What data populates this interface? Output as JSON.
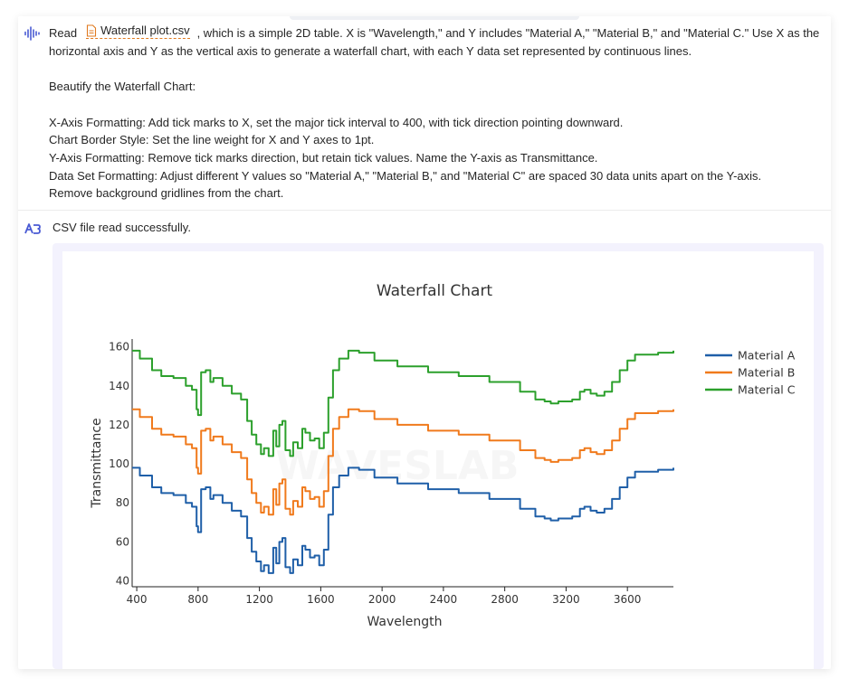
{
  "user_message": {
    "read_word": "Read",
    "file_name": "Waterfall plot.csv",
    "para1_rest": ", which is a simple 2D table. X is \"Wavelength,\" and Y includes \"Material A,\" \"Material B,\" and \"Material C.\" Use X as the horizontal axis and Y as the vertical axis to generate a waterfall chart, with each Y data set represented by continuous lines.",
    "para2": "Beautify the Waterfall Chart:",
    "line_x_axis": "X-Axis Formatting: Add tick marks to X, set the major tick interval to 400, with tick direction pointing downward.",
    "line_border": "Chart Border Style: Set the line weight for X and Y axes to 1pt.",
    "line_y_axis": "Y-Axis Formatting: Remove tick marks direction, but retain tick values. Name the Y-axis as Transmittance.",
    "line_data_set": "Data Set Formatting: Adjust different Y values so \"Material A,\" \"Material B,\" and \"Material C\" are spaced 30 data units apart on the Y-axis.",
    "line_grid": "Remove background gridlines from the chart."
  },
  "assistant_message": {
    "status_text": "CSV file read successfully."
  },
  "icons": {
    "user": "voice-wave-icon",
    "file": "document-icon",
    "assistant": "assistant-logo-icon"
  },
  "colors": {
    "accent": "#4a5bd4",
    "file_chip": "#e07a1f",
    "frame_bg": "#f3f2fd"
  },
  "chart_data": {
    "type": "line",
    "title": "Waterfall Chart",
    "xlabel": "Wavelength",
    "ylabel": "Transmittance",
    "xlim": [
      370,
      3900
    ],
    "ylim": [
      37,
      164
    ],
    "xticks": [
      400,
      800,
      1200,
      1600,
      2000,
      2400,
      2800,
      3200,
      3600
    ],
    "yticks": [
      40,
      60,
      80,
      100,
      120,
      140,
      160
    ],
    "grid": false,
    "legend_position": "top-right",
    "x": [
      370,
      420,
      500,
      560,
      640,
      720,
      760,
      790,
      800,
      820,
      850,
      880,
      900,
      960,
      1020,
      1080,
      1120,
      1150,
      1180,
      1210,
      1230,
      1260,
      1290,
      1310,
      1330,
      1350,
      1370,
      1400,
      1420,
      1450,
      1480,
      1500,
      1530,
      1560,
      1590,
      1620,
      1650,
      1680,
      1720,
      1780,
      1850,
      1950,
      2100,
      2300,
      2500,
      2700,
      2900,
      3000,
      3060,
      3100,
      3150,
      3200,
      3240,
      3290,
      3320,
      3360,
      3400,
      3450,
      3500,
      3550,
      3600,
      3650,
      3700,
      3800,
      3900
    ],
    "series": [
      {
        "name": "Material A",
        "color": "#1f5fa8",
        "values": [
          98,
          94,
          88,
          85,
          84,
          80,
          78,
          68,
          65,
          87,
          88,
          82,
          84,
          80,
          76,
          73,
          62,
          55,
          50,
          45,
          48,
          44,
          57,
          49,
          60,
          62,
          47,
          44,
          51,
          48,
          58,
          56,
          52,
          53,
          48,
          56,
          74,
          88,
          94,
          98,
          97,
          93,
          90,
          87,
          85,
          82,
          77,
          73,
          72,
          71,
          72,
          72,
          73,
          77,
          78,
          76,
          75,
          77,
          82,
          88,
          93,
          96,
          96,
          97,
          98
        ]
      },
      {
        "name": "Material B",
        "color": "#f07a1c",
        "values": [
          128,
          124,
          118,
          115,
          114,
          110,
          108,
          98,
          95,
          117,
          118,
          112,
          114,
          110,
          106,
          103,
          92,
          85,
          80,
          75,
          78,
          74,
          87,
          79,
          90,
          92,
          77,
          74,
          81,
          78,
          88,
          86,
          82,
          83,
          78,
          86,
          104,
          118,
          124,
          128,
          127,
          123,
          120,
          117,
          115,
          112,
          107,
          103,
          102,
          101,
          102,
          102,
          103,
          107,
          108,
          106,
          105,
          107,
          112,
          118,
          123,
          126,
          126,
          127,
          128
        ]
      },
      {
        "name": "Material C",
        "color": "#2ca02c",
        "values": [
          158,
          154,
          148,
          145,
          144,
          140,
          138,
          128,
          125,
          147,
          148,
          142,
          144,
          140,
          136,
          133,
          122,
          115,
          110,
          105,
          108,
          104,
          117,
          109,
          120,
          122,
          107,
          104,
          111,
          108,
          118,
          116,
          112,
          113,
          108,
          116,
          134,
          148,
          154,
          158,
          157,
          153,
          150,
          147,
          145,
          142,
          137,
          133,
          132,
          131,
          132,
          132,
          133,
          137,
          138,
          136,
          135,
          137,
          142,
          148,
          153,
          156,
          156,
          157,
          158
        ]
      }
    ],
    "watermark": "WAVESLAB"
  }
}
